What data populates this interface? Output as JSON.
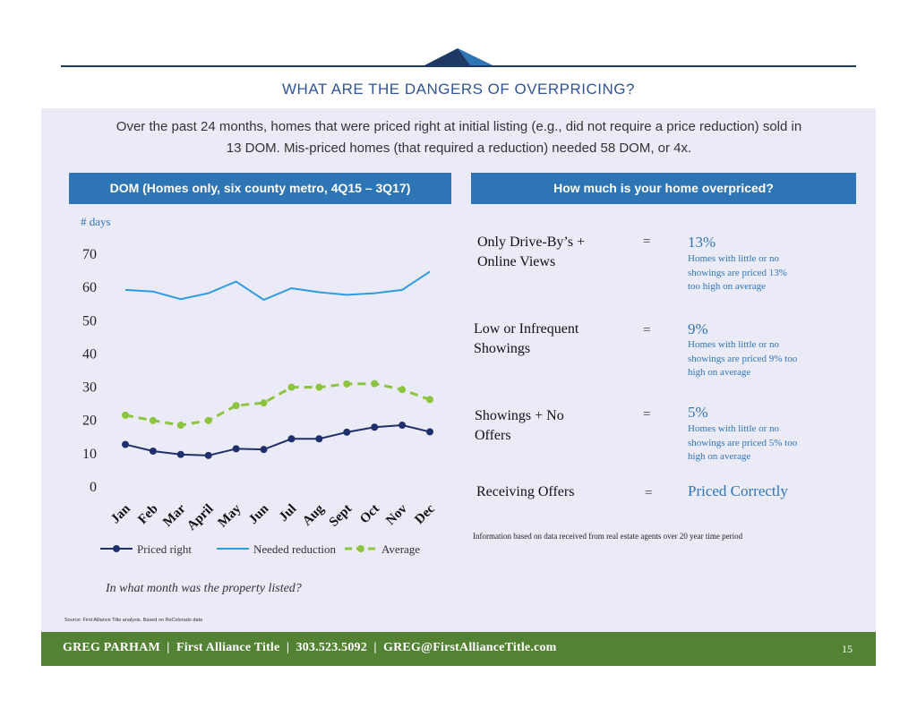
{
  "title": "WHAT ARE THE DANGERS OF OVERPRICING?",
  "intro": {
    "line1": "Over the past 24 months, homes that were priced right at initial listing (e.g., did not require a price reduction) sold in",
    "line2": "13 DOM.  Mis-priced homes (that required a reduction) needed 58 DOM, or 4x."
  },
  "chart_header": "DOM (Homes only, six county metro, 4Q15 – 3Q17)",
  "table_header": "How much is your home overpriced?",
  "chart_data": {
    "type": "line",
    "title": "DOM (Homes only, six county metro, 4Q15 – 3Q17)",
    "ylabel": "# days",
    "xlabel": "In what month was the property listed?",
    "categories": [
      "Jan",
      "Feb",
      "Mar",
      "April",
      "May",
      "Jun",
      "Jul",
      "Aug",
      "Sept",
      "Oct",
      "Nov",
      "Dec"
    ],
    "yticks": [
      0,
      10,
      20,
      30,
      40,
      50,
      60,
      70
    ],
    "ylim": [
      0,
      70
    ],
    "legend_position": "bottom",
    "series": [
      {
        "name": "Priced right",
        "color": "#1f2f6b",
        "style": "solid-markers",
        "values": [
          12.5,
          10.5,
          9.5,
          9.2,
          11.2,
          11,
          14.2,
          14.2,
          16.2,
          17.7,
          18.3,
          16.3
        ]
      },
      {
        "name": "Needed reduction",
        "color": "#2e9be0",
        "style": "solid",
        "values": [
          59,
          58.5,
          56.2,
          58,
          61.5,
          56,
          59.5,
          58.3,
          57.5,
          58,
          59,
          64.5
        ]
      },
      {
        "name": "Average",
        "color": "#8dc43f",
        "style": "dashed-markers",
        "values": [
          21.3,
          19.7,
          18.3,
          19.7,
          24.2,
          25,
          29.7,
          29.7,
          30.7,
          30.8,
          29,
          26
        ]
      }
    ]
  },
  "rows": [
    {
      "label_lines": [
        "Only Drive-By’s +",
        "Online Views"
      ],
      "eq": "=",
      "pct": "13%",
      "desc_lines": [
        "Homes with little or no",
        "showings are priced 13%",
        "too high on average"
      ]
    },
    {
      "label_lines": [
        "Low or Infrequent",
        "Showings"
      ],
      "eq": "=",
      "pct": "9%",
      "desc_lines": [
        "Homes with little or no",
        "showings are priced 9% too",
        "high on average"
      ]
    },
    {
      "label_lines": [
        "Showings + No",
        "Offers"
      ],
      "eq": "=",
      "pct": "5%",
      "desc_lines": [
        "Homes with little or no",
        "showings are priced 5% too",
        "high on average"
      ]
    },
    {
      "label_lines": [
        "Receiving Offers"
      ],
      "eq": "=",
      "pct": "Priced Correctly",
      "desc_lines": []
    }
  ],
  "note": "Information based on data received from real estate agents over 20 year time period",
  "question": "In what month was the property listed?",
  "source": "Source: First Alliance Title analysis. Based on ReColorado data",
  "footer": {
    "text": "GREG PARHAM  |  First Alliance Title  |  303.523.5092  |  GREG@FirstAllianceTitle.com",
    "page": "15"
  },
  "colors": {
    "accent": "#2e75b6",
    "footer": "#548235",
    "panel": "#ebebf7",
    "navy": "#1f3864"
  }
}
